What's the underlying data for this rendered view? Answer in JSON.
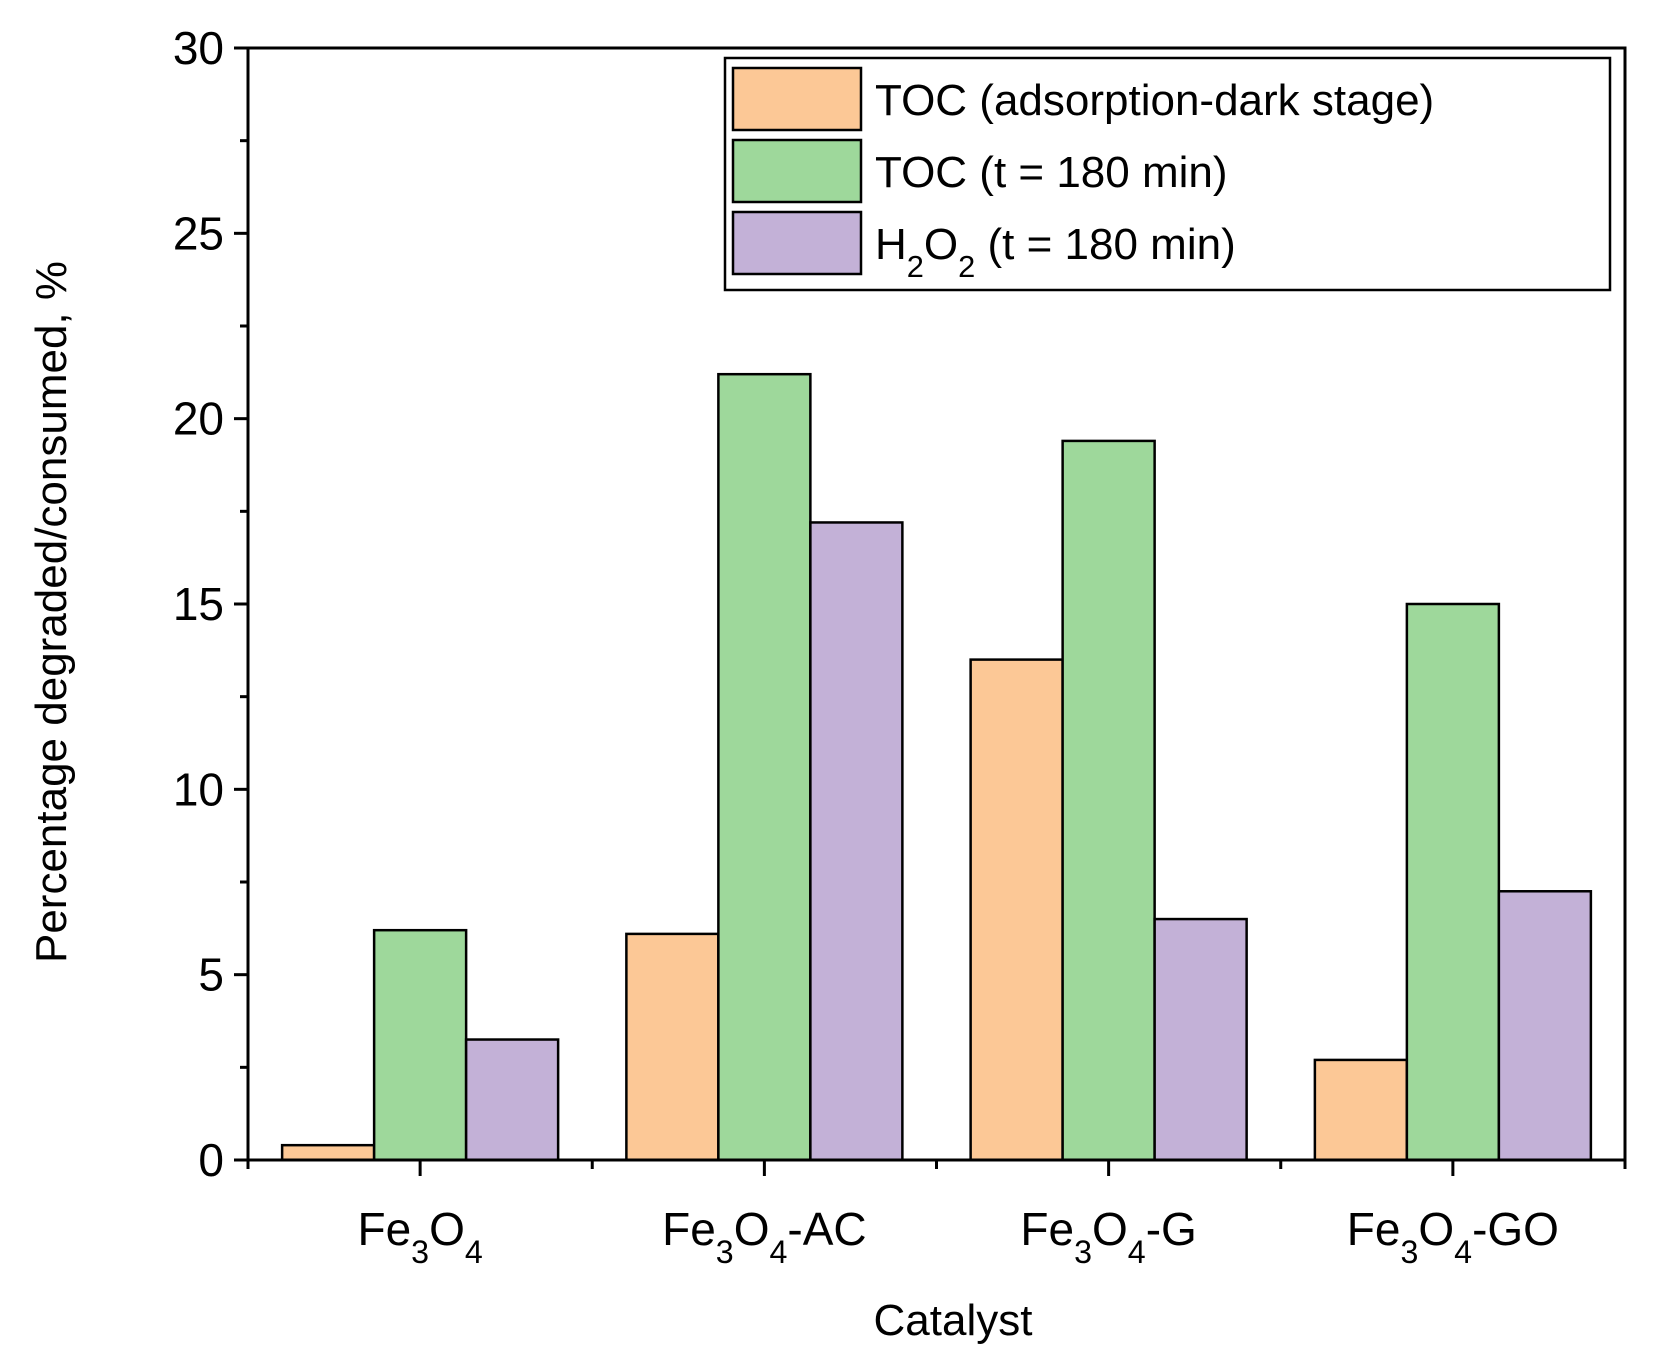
{
  "chart_data": {
    "type": "bar",
    "title": "",
    "xlabel": "Catalyst",
    "ylabel": "Percentage degraded/consumed, %",
    "ylim": [
      0,
      30
    ],
    "yticks": [
      0,
      5,
      10,
      15,
      20,
      25,
      30
    ],
    "ytick_labels": [
      "0",
      "5",
      "10",
      "15",
      "20",
      "25",
      "30"
    ],
    "grid": false,
    "legend_position": "top-right",
    "categories": [
      {
        "base": "Fe",
        "sub1": "3",
        "mid": "O",
        "sub2": "4",
        "suffix": ""
      },
      {
        "base": "Fe",
        "sub1": "3",
        "mid": "O",
        "sub2": "4",
        "suffix": "-AC"
      },
      {
        "base": "Fe",
        "sub1": "3",
        "mid": "O",
        "sub2": "4",
        "suffix": "-G"
      },
      {
        "base": "Fe",
        "sub1": "3",
        "mid": "O",
        "sub2": "4",
        "suffix": "-GO"
      }
    ],
    "series": [
      {
        "name": "TOC (adsorption-dark stage)",
        "legend_parts": [
          {
            "t": "TOC (adsorption-dark stage)",
            "sub": false
          }
        ],
        "color": "#fcc896",
        "values": [
          0.4,
          6.1,
          13.5,
          2.7
        ]
      },
      {
        "name": "TOC (t = 180 min)",
        "legend_parts": [
          {
            "t": "TOC (t = 180 min)",
            "sub": false
          }
        ],
        "color": "#9ed89b",
        "values": [
          6.2,
          21.2,
          19.4,
          15.0
        ]
      },
      {
        "name": "H2O2 (t = 180 min)",
        "legend_parts": [
          {
            "t": "H",
            "sub": false
          },
          {
            "t": "2",
            "sub": true
          },
          {
            "t": "O",
            "sub": false
          },
          {
            "t": "2",
            "sub": true
          },
          {
            "t": " (t = 180 min)",
            "sub": false
          }
        ],
        "color": "#c3b1d7",
        "values": [
          3.25,
          17.2,
          6.5,
          7.25
        ]
      }
    ]
  }
}
